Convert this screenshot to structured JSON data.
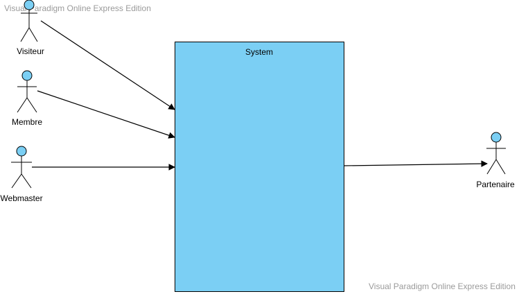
{
  "watermark": {
    "top": "Visual Paradigm Online Express Edition",
    "bottom": "Visual Paradigm Online Express Edition"
  },
  "system": {
    "title": "System",
    "fill": "#7bcff4",
    "stroke": "#000000"
  },
  "actors": {
    "visiteur": "Visiteur",
    "membre": "Membre",
    "webmaster": "Webmaster",
    "partenaire": "Partenaire",
    "head_fill": "#7bcff4"
  }
}
